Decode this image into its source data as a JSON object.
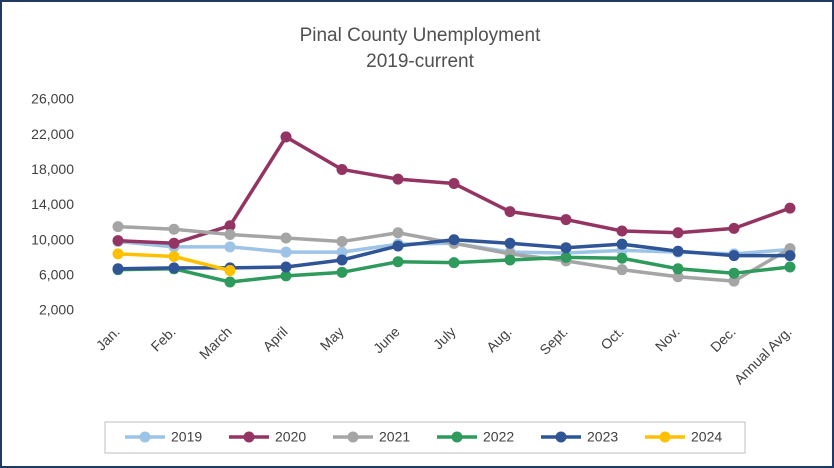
{
  "chart_data": {
    "type": "line",
    "title": "Pinal County Unemployment",
    "subtitle": "2019-current",
    "categories": [
      "Jan.",
      "Feb.",
      "March",
      "April",
      "May",
      "June",
      "July",
      "Aug.",
      "Sept.",
      "Oct.",
      "Nov.",
      "Dec.",
      "Annual Avg."
    ],
    "series": [
      {
        "name": "2019",
        "color": "#9dc3e6",
        "values": [
          9900,
          9300,
          9300,
          8700,
          8700,
          9600,
          9700,
          8700,
          8600,
          8900,
          8700,
          8500,
          9000
        ]
      },
      {
        "name": "2020",
        "color": "#943463",
        "values": [
          10000,
          9700,
          11700,
          21800,
          18100,
          17000,
          16500,
          13300,
          12400,
          11100,
          10900,
          11400,
          13700
        ]
      },
      {
        "name": "2021",
        "color": "#a5a5a5",
        "values": [
          11600,
          11300,
          10700,
          10300,
          9900,
          10900,
          9700,
          8500,
          7700,
          6700,
          5900,
          5400,
          9100
        ]
      },
      {
        "name": "2022",
        "color": "#2e9a5c",
        "values": [
          6700,
          6800,
          5300,
          6000,
          6400,
          7600,
          7500,
          7800,
          8100,
          8000,
          6800,
          6300,
          7000
        ]
      },
      {
        "name": "2023",
        "color": "#2f5597",
        "values": [
          6800,
          6900,
          6900,
          7000,
          7800,
          9400,
          10100,
          9700,
          9200,
          9600,
          8800,
          8300,
          8300
        ]
      },
      {
        "name": "2024",
        "color": "#ffc000",
        "values": [
          8500,
          8200,
          6600,
          null,
          null,
          null,
          null,
          null,
          null,
          null,
          null,
          null,
          null
        ]
      }
    ],
    "ylim": [
      2000,
      26000
    ],
    "yticks": [
      {
        "value": 2000,
        "label": "2,000"
      },
      {
        "value": 6000,
        "label": "6,000"
      },
      {
        "value": 10000,
        "label": "10,000"
      },
      {
        "value": 14000,
        "label": "14,000"
      },
      {
        "value": 18000,
        "label": "18,000"
      },
      {
        "value": 22000,
        "label": "22,000"
      },
      {
        "value": 26000,
        "label": "26,000"
      }
    ],
    "grid": false,
    "legend": "bottom"
  }
}
